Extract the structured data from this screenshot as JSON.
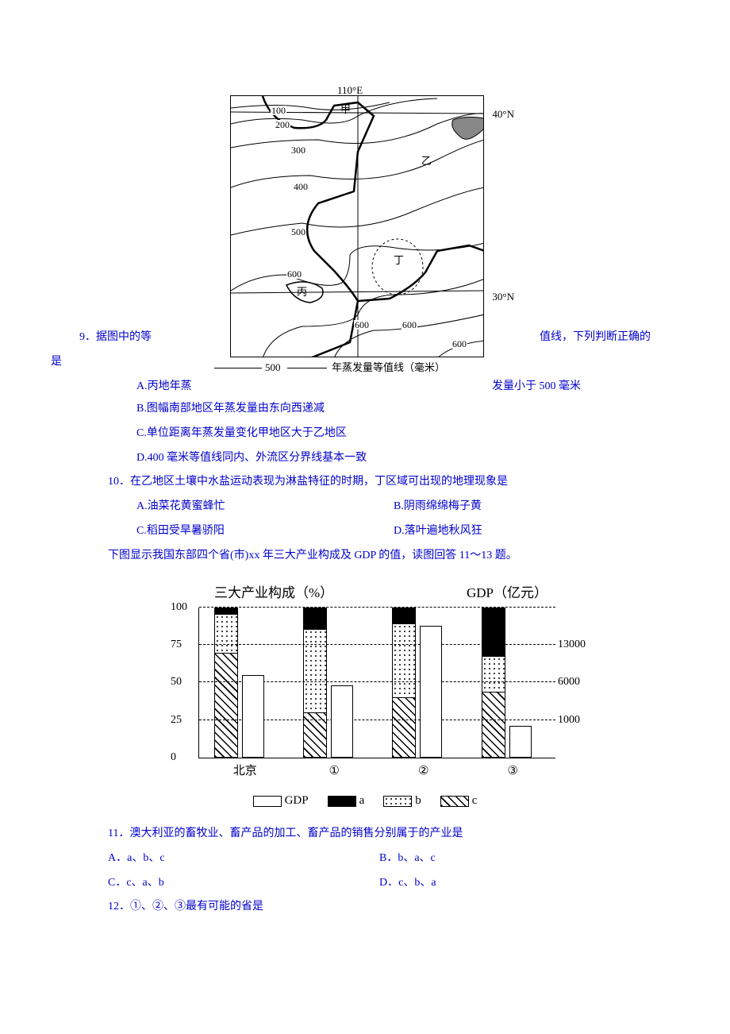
{
  "map": {
    "lon_label": "110°E",
    "lat_top": "40°N",
    "lat_bot": "30°N",
    "contours": [
      "100",
      "200",
      "300",
      "400",
      "500",
      "600",
      "600",
      "600",
      "600"
    ],
    "regions": {
      "jia": "甲",
      "yi": "乙",
      "bing": "丙",
      "ding": "丁"
    },
    "legend_value": "500",
    "caption": "年蒸发量等值线（毫米）"
  },
  "q9": {
    "stem_left": "9．据图中的等",
    "stem_right1": "值线，下列判断正确的",
    "stem_right2": "是",
    "optA_left": "A.丙地年蒸",
    "optA_right": "发量小于 500 毫米",
    "optB": "B.图幅南部地区年蒸发量由东向西递减",
    "optC": "C.单位距离年蒸发量变化甲地区大于乙地区",
    "optD": "D.400 毫米等值线同内、外流区分界线基本一致"
  },
  "q10": {
    "stem": "10．在乙地区土壤中水盐运动表现为淋盐特征的时期，丁区域可出现的地理现象是",
    "optA": "A.油菜花黄蜜蜂忙",
    "optB": "B.阴雨绵绵梅子黄",
    "optC": "C.稻田受旱暑骄阳",
    "optD": "D.落叶遍地秋风狂"
  },
  "chart_intro": "下图显示我国东部四个省(市)xx 年三大产业构成及 GDP 的值，读图回答 11～13 题。",
  "chart": {
    "left_title": "三大产业构成（%）",
    "right_title": "GDP（亿元）",
    "y_left": [
      "0",
      "25",
      "50",
      "75",
      "100"
    ],
    "y_right": [
      "1000",
      "6000",
      "13000"
    ],
    "categories": [
      "北京",
      "①",
      "②",
      "③"
    ],
    "stacks": [
      {
        "c": 70,
        "b": 26,
        "a": 4
      },
      {
        "c": 30,
        "b": 56,
        "a": 14
      },
      {
        "c": 40,
        "b": 50,
        "a": 10
      },
      {
        "c": 44,
        "b": 24,
        "a": 32
      }
    ],
    "gdp_heights_pct": [
      55,
      48,
      88,
      21
    ],
    "legend": {
      "gdp": "GDP",
      "a": "a",
      "b": "b",
      "c": "c"
    }
  },
  "q11": {
    "stem": "11．澳大利亚的畜牧业、畜产品的加工、畜产品的销售分别属于的产业是",
    "optA": "A．a、b、c",
    "optB": "B．b、a、c",
    "optC": "C．c、a、b",
    "optD": "D．c、b、a"
  },
  "q12": {
    "stem": "12．①、②、③最有可能的省是"
  }
}
